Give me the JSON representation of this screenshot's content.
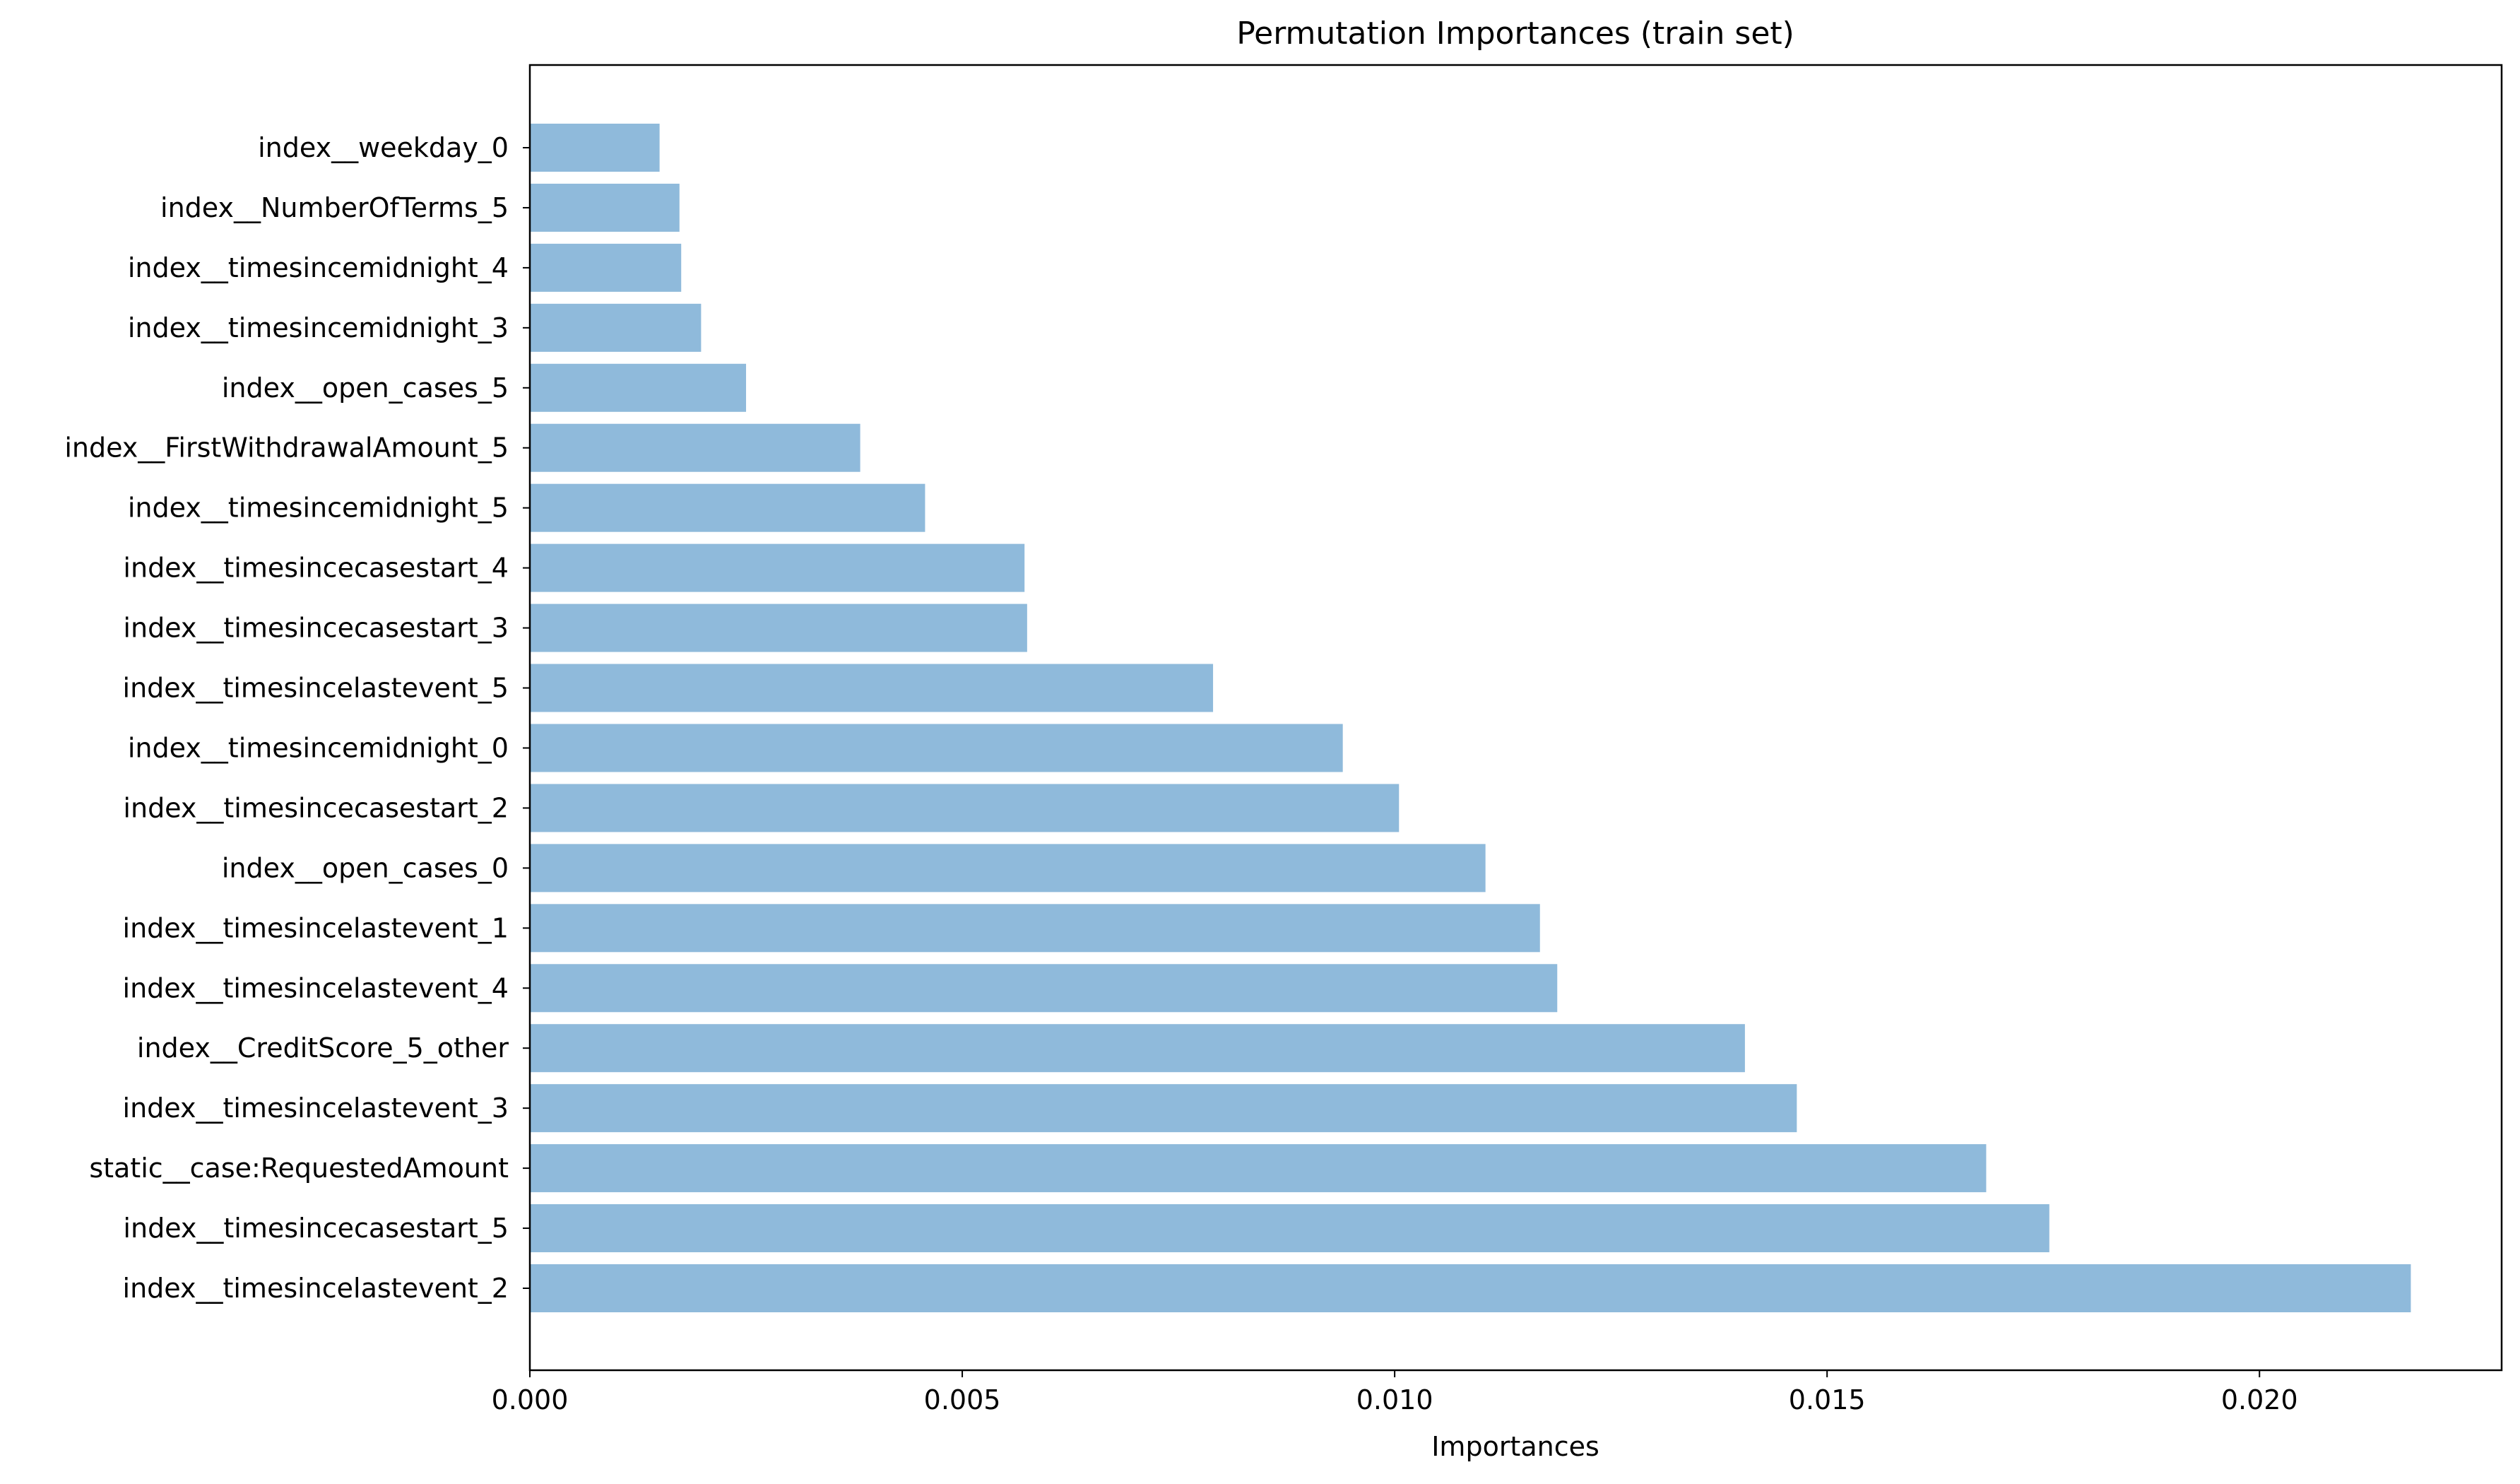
{
  "chart_data": {
    "type": "bar",
    "orientation": "horizontal",
    "title": "Permutation Importances (train set)",
    "xlabel": "Importances",
    "ylabel": "",
    "xlim": [
      0.0,
      0.0228
    ],
    "xticks": [
      0.0,
      0.005,
      0.01,
      0.015,
      0.02
    ],
    "xtick_labels": [
      "0.000",
      "0.005",
      "0.010",
      "0.015",
      "0.020"
    ],
    "grid": false,
    "bar_color": "#8fbadb",
    "categories": [
      "index__weekday_0",
      "index__NumberOfTerms_5",
      "index__timesincemidnight_4",
      "index__timesincemidnight_3",
      "index__open_cases_5",
      "index__FirstWithdrawalAmount_5",
      "index__timesincemidnight_5",
      "index__timesincecasestart_4",
      "index__timesincecasestart_3",
      "index__timesincelastevent_5",
      "index__timesincemidnight_0",
      "index__timesincecasestart_2",
      "index__open_cases_0",
      "index__timesincelastevent_1",
      "index__timesincelastevent_4",
      "index__CreditScore_5_other",
      "index__timesincelastevent_3",
      "static__case:RequestedAmount",
      "index__timesincecasestart_5",
      "index__timesincelastevent_2"
    ],
    "values": [
      0.0015,
      0.00173,
      0.00175,
      0.00198,
      0.0025,
      0.00382,
      0.00457,
      0.00572,
      0.00575,
      0.0079,
      0.0094,
      0.01005,
      0.01105,
      0.01168,
      0.01188,
      0.01405,
      0.01465,
      0.01684,
      0.01757,
      0.02175
    ]
  }
}
